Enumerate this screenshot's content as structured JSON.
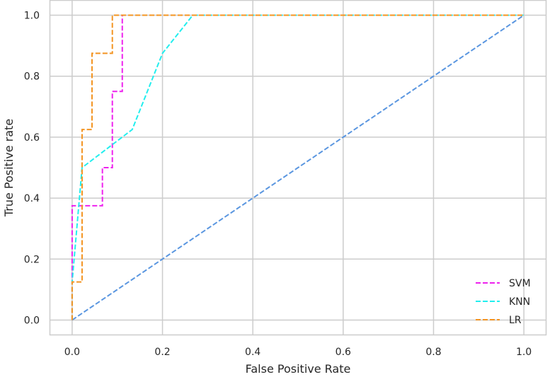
{
  "chart_data": {
    "type": "line",
    "title": "",
    "xlabel": "False Positive Rate",
    "ylabel": "True Positive rate",
    "xlim": [
      -0.05,
      1.05
    ],
    "ylim": [
      -0.05,
      1.05
    ],
    "xticks": [
      0.0,
      0.2,
      0.4,
      0.6,
      0.8,
      1.0
    ],
    "yticks": [
      0.0,
      0.2,
      0.4,
      0.6,
      0.8,
      1.0
    ],
    "xtick_labels": [
      "0.0",
      "0.2",
      "0.4",
      "0.6",
      "0.8",
      "1.0"
    ],
    "ytick_labels": [
      "0.0",
      "0.2",
      "0.4",
      "0.6",
      "0.8",
      "1.0"
    ],
    "grid": true,
    "legend_position": "bottom-right",
    "series": [
      {
        "name": "SVM",
        "color": "#ee22ee",
        "style": "dashed",
        "x": [
          0.0,
          0.0,
          0.0,
          0.067,
          0.067,
          0.089,
          0.089,
          0.111,
          0.111,
          1.0
        ],
        "y": [
          0.0,
          0.125,
          0.375,
          0.375,
          0.5,
          0.5,
          0.75,
          0.75,
          1.0,
          1.0
        ]
      },
      {
        "name": "KNN",
        "color": "#22eeee",
        "style": "dashed",
        "x": [
          0.0,
          0.0,
          0.022,
          0.133,
          0.2,
          0.267,
          1.0
        ],
        "y": [
          0.0,
          0.125,
          0.5,
          0.625,
          0.875,
          1.0,
          1.0
        ]
      },
      {
        "name": "LR",
        "color": "#f39422",
        "style": "dashed",
        "x": [
          0.0,
          0.0,
          0.022,
          0.022,
          0.044,
          0.044,
          0.089,
          0.089,
          1.0
        ],
        "y": [
          0.0,
          0.125,
          0.125,
          0.625,
          0.625,
          0.875,
          0.875,
          1.0,
          1.0
        ]
      },
      {
        "name": "",
        "color": "#5a96e0",
        "style": "dashed",
        "x": [
          0.0,
          1.0
        ],
        "y": [
          0.0,
          1.0
        ]
      }
    ]
  }
}
